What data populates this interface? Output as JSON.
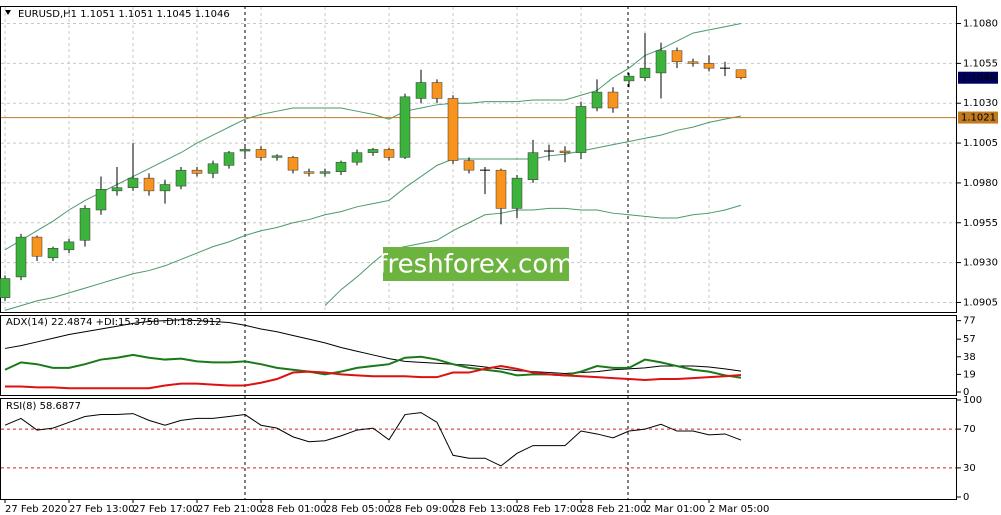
{
  "chart_data": [
    {
      "type": "candlestick",
      "title": "EURUSD,H1  1.1051 1.1051 1.1045 1.1046",
      "watermark": "freshforex.com",
      "categories": [
        "27 Feb 2020",
        null,
        null,
        null,
        "27 Feb 13:00",
        null,
        null,
        null,
        "27 Feb 17:00",
        null,
        null,
        null,
        "27 Feb 21:00",
        null,
        null,
        null,
        "28 Feb 01:00",
        null,
        null,
        null,
        "28 Feb 05:00",
        null,
        null,
        null,
        "28 Feb 09:00",
        null,
        null,
        null,
        "28 Feb 13:00",
        null,
        null,
        null,
        "28 Feb 17:00",
        null,
        null,
        null,
        "28 Feb 21:00",
        null,
        null,
        null,
        "2 Mar 01:00",
        null,
        null,
        null,
        "2 Mar 05:00",
        null,
        null
      ],
      "open": [
        1.0908,
        1.0921,
        1.0946,
        1.0933,
        1.0938,
        1.0944,
        1.0963,
        1.0975,
        1.0977,
        1.0983,
        1.0975,
        1.0978,
        1.0988,
        1.0986,
        1.0991,
        1.1,
        1.1001,
        1.0996,
        1.0996,
        1.0987,
        1.0986,
        1.0987,
        1.0993,
        1.0999,
        1.1001,
        1.0996,
        1.1033,
        1.1043,
        1.1033,
        1.0994,
        1.0988,
        1.0988,
        1.0964,
        1.0982,
        1.1,
        1.1,
        1.0999,
        1.1027,
        1.1037,
        1.1044,
        1.1046,
        1.1049,
        1.1063,
        1.1056,
        1.1055,
        1.1052,
        1.1051
      ],
      "high": [
        1.0922,
        1.0948,
        1.0947,
        1.094,
        1.0945,
        1.0966,
        1.0984,
        1.099,
        1.1005,
        1.0986,
        1.0982,
        1.099,
        1.099,
        1.0994,
        1.1,
        1.1003,
        1.1003,
        1.0998,
        1.0997,
        1.0989,
        1.0989,
        1.0994,
        1.1001,
        1.1002,
        1.1002,
        1.1036,
        1.1051,
        1.1045,
        1.1035,
        1.0996,
        1.099,
        1.0989,
        1.0985,
        1.1007,
        1.1004,
        1.1003,
        1.1031,
        1.1045,
        1.104,
        1.1049,
        1.1074,
        1.1068,
        1.1065,
        1.1058,
        1.106,
        1.1056,
        1.1051
      ],
      "low": [
        1.0906,
        1.0919,
        1.0931,
        1.0931,
        1.0936,
        1.094,
        1.096,
        1.0972,
        1.0975,
        1.0972,
        1.0967,
        1.0976,
        1.0984,
        1.0983,
        1.0989,
        1.0997,
        1.0994,
        1.0994,
        1.0986,
        1.0984,
        1.0984,
        1.0985,
        1.0991,
        1.0997,
        1.0994,
        1.0995,
        1.103,
        1.103,
        1.0992,
        1.0986,
        1.0973,
        1.0954,
        1.0958,
        1.098,
        1.0994,
        1.0993,
        1.0995,
        1.1025,
        1.1024,
        1.104,
        1.1044,
        1.1033,
        1.1052,
        1.1053,
        1.105,
        1.1047,
        1.1045
      ],
      "close": [
        1.092,
        1.0946,
        1.0934,
        1.0939,
        1.0943,
        1.0964,
        1.0976,
        1.0977,
        1.0983,
        1.0975,
        1.0979,
        1.0988,
        1.0986,
        1.0992,
        1.0999,
        1.1001,
        1.0996,
        1.0997,
        1.0988,
        1.0986,
        1.0987,
        1.0993,
        1.0999,
        1.1001,
        1.0996,
        1.1034,
        1.1043,
        1.1033,
        1.0994,
        1.0988,
        1.0988,
        1.0964,
        1.0983,
        1.0999,
        1.1,
        1.0999,
        1.1028,
        1.1037,
        1.1027,
        1.1047,
        1.1052,
        1.1063,
        1.1056,
        1.1055,
        1.1052,
        1.1052,
        1.1046
      ],
      "up_color": "#3cb33c",
      "down_color": "#f7931e",
      "series": [
        {
          "color": "#4a9a6a",
          "values": [
            1.0938,
            1.0944,
            1.095,
            1.0956,
            1.0963,
            1.0969,
            1.0974,
            1.0979,
            1.0984,
            1.0989,
            1.0994,
            1.0999,
            1.1005,
            1.101,
            1.1015,
            1.102,
            1.1023,
            1.1025,
            1.1027,
            1.1027,
            1.1027,
            1.1027,
            1.1025,
            1.1023,
            1.102,
            1.1025,
            1.1027,
            1.1029,
            1.103,
            1.103,
            1.1031,
            1.1031,
            1.1031,
            1.1032,
            1.1032,
            1.1032,
            1.1035,
            1.1038,
            1.1046,
            1.1052,
            1.106,
            1.1064,
            1.1069,
            1.1074,
            1.1076,
            1.1078,
            1.108
          ]
        },
        {
          "color": "#4a9a6a",
          "values": [
            1.09,
            1.0903,
            1.0906,
            1.0908,
            1.0911,
            1.0914,
            1.0917,
            1.092,
            1.0923,
            1.0925,
            1.0928,
            1.0932,
            1.0936,
            1.094,
            1.0943,
            1.0947,
            1.095,
            1.0952,
            1.0955,
            1.0957,
            1.096,
            1.0962,
            1.0965,
            1.0967,
            1.0969,
            1.0977,
            1.0984,
            1.0991,
            1.0995,
            1.0995,
            1.0995,
            1.0995,
            1.0995,
            1.0995,
            1.0997,
            1.0998,
            1.1,
            1.1002,
            1.1004,
            1.1006,
            1.1008,
            1.101,
            1.1013,
            1.1015,
            1.1018,
            1.102,
            1.1022
          ]
        },
        {
          "color": "#4a9a6a",
          "values": [
            null,
            null,
            null,
            null,
            null,
            null,
            null,
            null,
            null,
            null,
            null,
            null,
            null,
            null,
            null,
            null,
            null,
            null,
            null,
            null,
            1.0903,
            1.0913,
            1.0921,
            1.093,
            1.0938,
            1.094,
            1.0942,
            1.0944,
            1.095,
            1.0955,
            1.096,
            1.0961,
            1.0963,
            1.0963,
            1.0964,
            1.0964,
            1.0963,
            1.0963,
            1.0961,
            1.096,
            1.0959,
            1.0958,
            1.0958,
            1.096,
            1.0961,
            1.0963,
            1.0966
          ]
        }
      ],
      "price_line": 1.1021,
      "price_line_color": "#c07a20",
      "last_price": 1.1046,
      "last_price_color": "#000060",
      "ylim": [
        1.0899,
        1.1091
      ],
      "yticks": [
        1.0905,
        {
          "value": 1.093,
          "label": "1.0930"
        },
        1.0955,
        {
          "value": 1.098,
          "label": "1.0980"
        },
        1.1005,
        {
          "value": 1.103,
          "label": "1.1030"
        },
        1.1055,
        {
          "value": 1.108,
          "label": "1.1080"
        }
      ],
      "grid": true
    },
    {
      "type": "line",
      "title": "ADX(14) 22.4874 +DI:15.3758 -DI:18.2912",
      "series": [
        {
          "color": "#000000",
          "width": 1,
          "values": [
            47,
            50,
            54,
            58,
            62,
            65,
            68,
            71,
            74,
            76,
            77,
            78,
            77,
            76,
            75,
            72,
            68,
            65,
            61,
            57,
            53,
            48,
            44,
            40,
            36,
            33,
            32,
            31,
            30,
            29,
            27,
            25,
            23,
            22,
            21,
            20,
            21,
            22,
            24,
            25,
            26,
            28,
            28,
            28,
            27,
            25,
            22.4874
          ]
        },
        {
          "color": "#1a7a1a",
          "width": 2,
          "values": [
            24,
            32,
            30,
            26,
            26,
            30,
            35,
            37,
            40,
            37,
            35,
            36,
            33,
            32,
            32,
            33,
            30,
            26,
            24,
            22,
            19,
            22,
            26,
            28,
            30,
            37,
            38,
            35,
            30,
            26,
            24,
            22,
            18,
            19,
            19,
            18,
            22,
            28,
            26,
            26,
            35,
            32,
            28,
            24,
            22,
            18,
            15.3758
          ]
        },
        {
          "color": "#dd1111",
          "width": 2,
          "values": [
            6,
            6,
            5,
            5,
            4,
            4,
            4,
            4,
            4,
            4,
            7,
            9,
            9,
            8,
            7,
            7,
            10,
            14,
            21,
            22,
            21,
            19,
            18,
            17,
            17,
            17,
            16,
            16,
            21,
            21,
            25,
            28,
            25,
            21,
            19,
            18,
            17,
            16,
            15,
            14,
            13,
            14,
            14,
            15,
            16,
            17,
            18.2912
          ]
        }
      ],
      "ylim": [
        0,
        82
      ],
      "yticks": [
        0,
        19,
        38,
        57,
        77
      ]
    },
    {
      "type": "line",
      "title": "RSI(8) 58.6877",
      "series": [
        {
          "color": "#000000",
          "width": 1,
          "values": [
            74,
            81,
            69,
            71,
            77,
            83,
            85,
            85,
            86,
            79,
            74,
            79,
            81,
            81,
            83,
            85,
            74,
            71,
            62,
            57,
            58,
            63,
            69,
            71,
            59,
            85,
            87,
            77,
            43,
            40,
            40,
            32,
            45,
            53,
            53,
            53,
            68,
            65,
            61,
            68,
            70,
            75,
            68,
            68,
            64,
            65,
            58.6877
          ]
        }
      ],
      "level_color": "#d02020",
      "ylim": [
        0,
        100
      ],
      "yticks": [
        0,
        30,
        70,
        100
      ]
    }
  ]
}
